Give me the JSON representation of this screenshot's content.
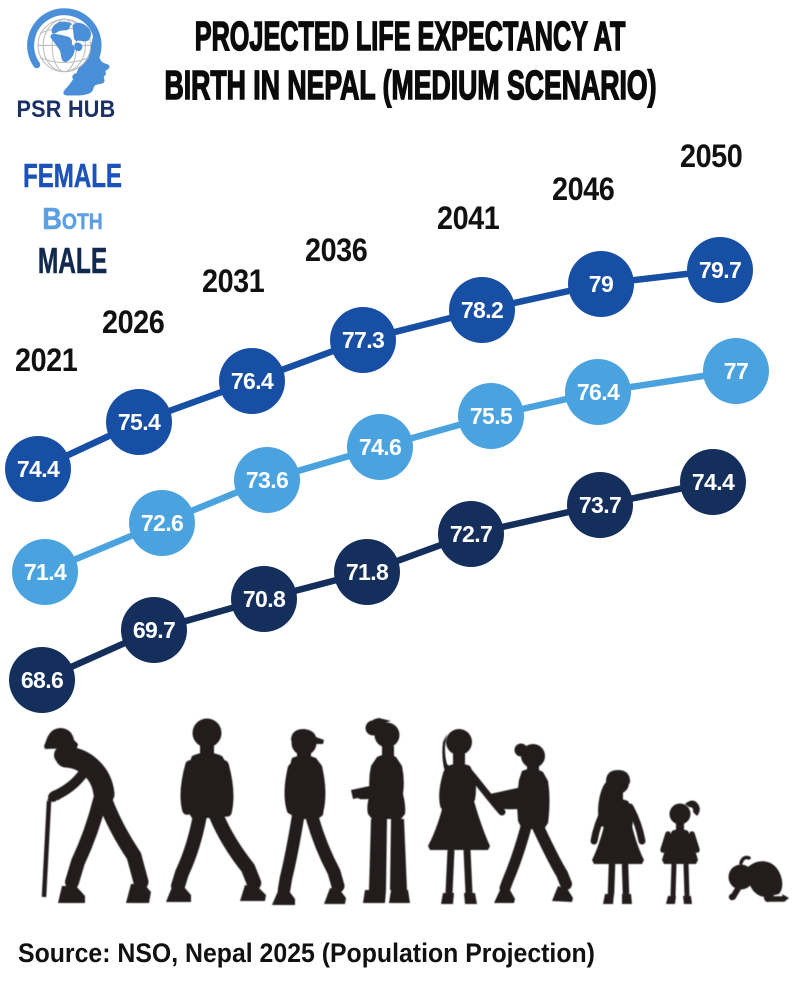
{
  "logo": {
    "brand": "PSR HUB",
    "icon": "head-globe-icon",
    "head_color": "#4a8fd7",
    "text_color": "#1b3166"
  },
  "title": {
    "line1": "PROJECTED LIFE EXPECTANCY AT",
    "line2": "BIRTH IN NEPAL (MEDIUM SCENARIO)"
  },
  "legend": {
    "items": [
      {
        "label": "FEMALE",
        "color": "#1d53b8"
      },
      {
        "label": "Both",
        "color": "#5c9fe2"
      },
      {
        "label": "MALE",
        "color": "#12294f"
      }
    ]
  },
  "chart_data": {
    "type": "line",
    "title": "Projected life expectancy at birth in Nepal (medium scenario)",
    "x": [
      2021,
      2026,
      2031,
      2036,
      2041,
      2046,
      2050
    ],
    "series": [
      {
        "name": "FEMALE",
        "color": "#174fa4",
        "values": [
          74.4,
          75.4,
          76.4,
          77.3,
          78.2,
          79,
          79.7
        ]
      },
      {
        "name": "Both",
        "color": "#4aa3de",
        "values": [
          71.4,
          72.6,
          73.6,
          74.6,
          75.5,
          76.4,
          77
        ]
      },
      {
        "name": "MALE",
        "color": "#142f5c",
        "values": [
          68.6,
          69.7,
          70.8,
          71.8,
          72.7,
          73.7,
          74.4
        ]
      }
    ],
    "marker_shape": "circle",
    "value_labels": "inside markers, white bold",
    "legend_position": "top-left",
    "grid": false,
    "ylim": [
      68,
      80
    ]
  },
  "silhouettes": [
    "elderly-man-with-cane-icon",
    "adult-man-walking-icon",
    "man-with-cap-walking-icon",
    "woman-standing-holding-folder-icon",
    "woman-in-dress-standing-icon",
    "woman-walking-reading-icon",
    "teen-girl-standing-icon",
    "little-girl-ponytail-icon",
    "baby-crawling-icon"
  ],
  "source": {
    "text": "Source: NSO, Nepal 2025 (Population Projection)"
  }
}
